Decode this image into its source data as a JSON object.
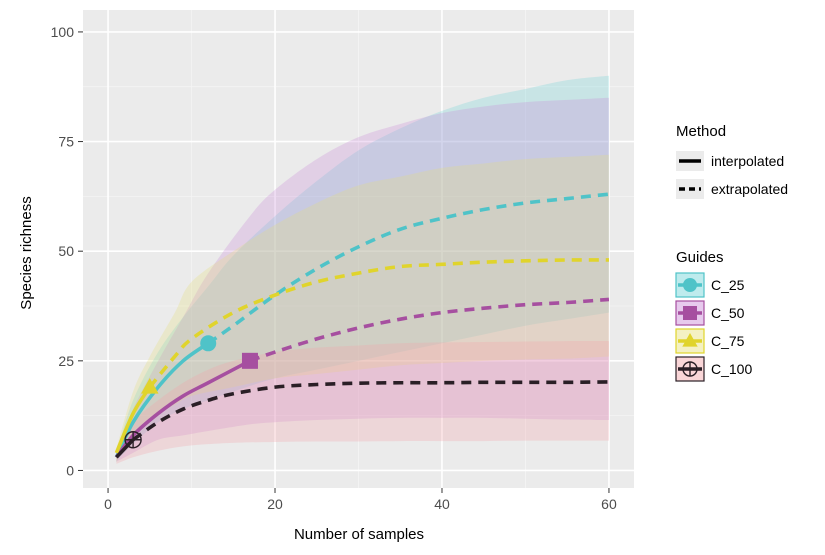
{
  "chart_data": {
    "type": "line",
    "xlabel": "Number of samples",
    "ylabel": "Species richness",
    "xlim": [
      -3,
      63
    ],
    "ylim": [
      -4,
      105
    ],
    "xticks": [
      0,
      20,
      40,
      60
    ],
    "yticks": [
      0,
      25,
      50,
      75,
      100
    ],
    "grid": true,
    "legend_position": "right",
    "method_legend": {
      "title": "Method",
      "items": [
        {
          "label": "interpolated",
          "dash": "solid"
        },
        {
          "label": "extrapolated",
          "dash": "dashed"
        }
      ]
    },
    "guides_legend": {
      "title": "Guides"
    },
    "series": [
      {
        "name": "C_25",
        "color": "#4fc3c8",
        "band_color": "#6fd3d6",
        "marker": "circle",
        "observed": {
          "x": 12,
          "y": 29
        },
        "x": [
          1,
          3,
          6,
          9,
          12,
          15,
          20,
          25,
          30,
          35,
          40,
          45,
          50,
          55,
          60
        ],
        "y": [
          3,
          11,
          19,
          25,
          29,
          33,
          40,
          46,
          51,
          55,
          57.5,
          59.5,
          61,
          62,
          63
        ],
        "lower": [
          2,
          6,
          11,
          14,
          16,
          18,
          21,
          23,
          25,
          27,
          29,
          31,
          33,
          34.5,
          36
        ],
        "upper": [
          4,
          16,
          27,
          35,
          42,
          49,
          58,
          66,
          73,
          78,
          82,
          85,
          87,
          89,
          90
        ]
      },
      {
        "name": "C_50",
        "color": "#a64fa0",
        "band_color": "#c98ad6",
        "marker": "square",
        "observed": {
          "x": 17,
          "y": 25
        },
        "x": [
          1,
          3,
          6,
          9,
          12,
          17,
          20,
          25,
          30,
          35,
          40,
          45,
          50,
          55,
          60
        ],
        "y": [
          3,
          8,
          13,
          17,
          20,
          25,
          27,
          30,
          32.5,
          34.5,
          36,
          37,
          37.8,
          38.3,
          39
        ],
        "lower": [
          2,
          4,
          7,
          8,
          9,
          10.5,
          11,
          11.5,
          11.8,
          12,
          12,
          12,
          11.8,
          11.6,
          11.5
        ],
        "upper": [
          4,
          14,
          25,
          35,
          45,
          58,
          64,
          71,
          76,
          79,
          81.5,
          83,
          84,
          84.5,
          85
        ]
      },
      {
        "name": "C_75",
        "color": "#e0d42c",
        "band_color": "#e6e07a",
        "marker": "triangle",
        "observed": {
          "x": 5,
          "y": 19
        },
        "x": [
          1,
          3,
          5,
          8,
          10,
          15,
          20,
          25,
          30,
          35,
          40,
          45,
          50,
          55,
          60
        ],
        "y": [
          4,
          13,
          19,
          26,
          30,
          36,
          40,
          43,
          45,
          46.5,
          47,
          47.5,
          47.8,
          48,
          48
        ],
        "lower": [
          2,
          8,
          12,
          15,
          17,
          19,
          21,
          22,
          23,
          24,
          24.5,
          25,
          25.3,
          25.5,
          26
        ],
        "upper": [
          5,
          18,
          26,
          36,
          43,
          50,
          56,
          61,
          65,
          67,
          69,
          70,
          71,
          71.5,
          72
        ]
      },
      {
        "name": "C_100",
        "color": "#2a1f26",
        "band_color": "#f3a3a8",
        "marker": "crosshair",
        "observed": {
          "x": 3,
          "y": 7
        },
        "x": [
          1,
          3,
          6,
          9,
          12,
          15,
          20,
          25,
          30,
          35,
          40,
          45,
          50,
          55,
          60
        ],
        "y": [
          3,
          7,
          11,
          14,
          16,
          17.5,
          19,
          19.6,
          19.9,
          20,
          20,
          20.1,
          20.1,
          20.1,
          20.2
        ],
        "lower": [
          1.5,
          3,
          4.5,
          5.5,
          6,
          6.3,
          6.5,
          6.6,
          6.6,
          6.7,
          6.7,
          6.7,
          6.8,
          6.8,
          6.8
        ],
        "upper": [
          4,
          11,
          16,
          20,
          23,
          25,
          27,
          28,
          28.5,
          29,
          29.2,
          29.3,
          29.4,
          29.5,
          29.5
        ]
      }
    ]
  }
}
